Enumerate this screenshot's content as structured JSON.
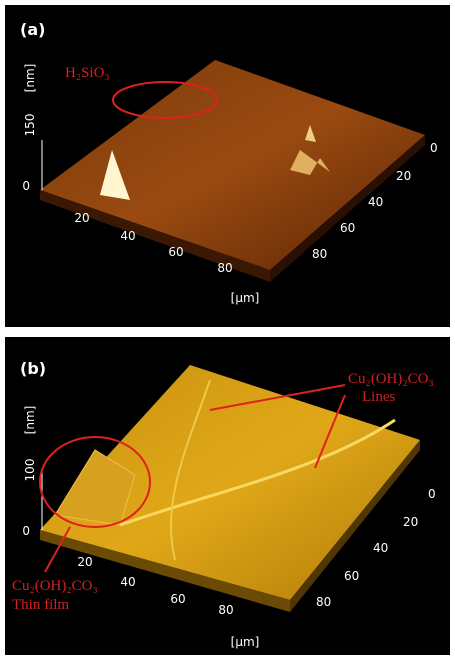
{
  "panels": [
    {
      "label": "(a)",
      "z_axis_label": "[nm]",
      "z_ticks": [
        "0",
        "150"
      ],
      "x_ticks": [
        "20",
        "40",
        "60",
        "80"
      ],
      "y_ticks": [
        "0",
        "20",
        "40",
        "60",
        "80"
      ],
      "x_axis_label": "[µm]",
      "annotations": [
        "H₂SiO₃"
      ]
    },
    {
      "label": "(b)",
      "z_axis_label": "[nm]",
      "z_ticks": [
        "0",
        "100"
      ],
      "x_ticks": [
        "20",
        "40",
        "60",
        "80"
      ],
      "y_ticks": [
        "0",
        "20",
        "40",
        "60",
        "80"
      ],
      "x_axis_label": "[µm]",
      "annotations": [
        "Cu₂(OH)₂CO₃",
        "Lines",
        "Cu₂(OH)₂CO₃",
        "Thin film"
      ]
    }
  ]
}
